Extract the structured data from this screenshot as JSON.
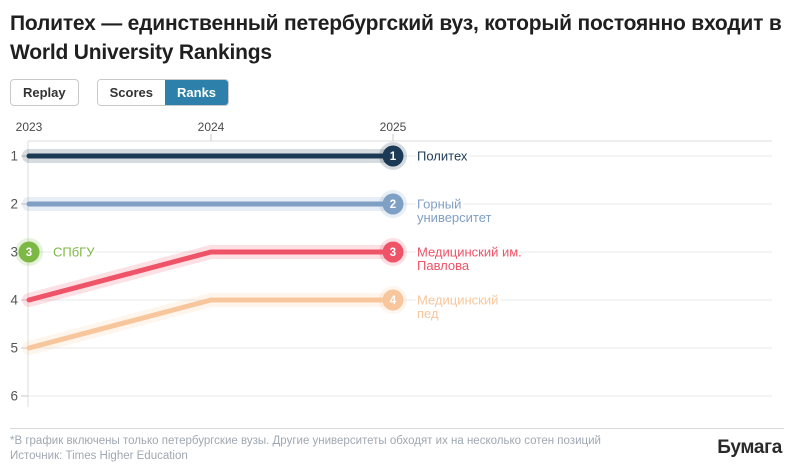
{
  "title": "Политех — единственный петербургский вуз, который постоянно входит в World University Rankings",
  "controls": {
    "replay_label": "Replay",
    "toggle": [
      {
        "label": "Scores",
        "active": false
      },
      {
        "label": "Ranks",
        "active": true
      }
    ],
    "active_color": "#2c80a9"
  },
  "chart_data": {
    "type": "line",
    "subtype": "bump-rank-chart",
    "x": [
      "2023",
      "2024",
      "2025"
    ],
    "yticks": [
      1,
      2,
      3,
      4,
      5,
      6
    ],
    "y_axis_inverted": true,
    "ylim": [
      1,
      6
    ],
    "grid": "horizontal",
    "legend_position": "right-end-labels",
    "series": [
      {
        "name": "Политех",
        "label_lines": [
          "Политех"
        ],
        "color": "#1c3a55",
        "ranks": [
          1,
          1,
          1
        ],
        "badge": "1",
        "badge_pos": "end"
      },
      {
        "name": "Горный университет",
        "label_lines": [
          "Горный",
          "университет"
        ],
        "color": "#7f9fc5",
        "ranks": [
          2,
          2,
          2
        ],
        "badge": "2",
        "badge_pos": "end"
      },
      {
        "name": "СПбГУ",
        "label_lines": [
          "СПбГУ"
        ],
        "color": "#7cb844",
        "ranks": [
          3,
          null,
          null
        ],
        "badge": "3",
        "badge_pos": "start"
      },
      {
        "name": "Медицинский им. Павлова",
        "label_lines": [
          "Медицинский им.",
          "Павлова"
        ],
        "color": "#ef5367",
        "ranks": [
          4,
          3,
          3
        ],
        "badge": "3",
        "badge_pos": "end"
      },
      {
        "name": "Медицинский пед",
        "label_lines": [
          "Медицинский",
          "пед"
        ],
        "color": "#f8c69c",
        "ranks": [
          5,
          4,
          4
        ],
        "badge": "4",
        "badge_pos": "end"
      }
    ],
    "style": {
      "grid_color": "#e9e9e9",
      "axis_color": "#dcdcdc",
      "tick_color": "#c9c9c9",
      "year_label_color": "#4a4a4a",
      "rank_label_color": "#555555"
    }
  },
  "footer": {
    "note": "*В график включены только петербургские вузы. Другие университеты обходят их на несколько сотен позиций",
    "source": "Источник: Times Higher Education",
    "logo": "Бумага"
  }
}
